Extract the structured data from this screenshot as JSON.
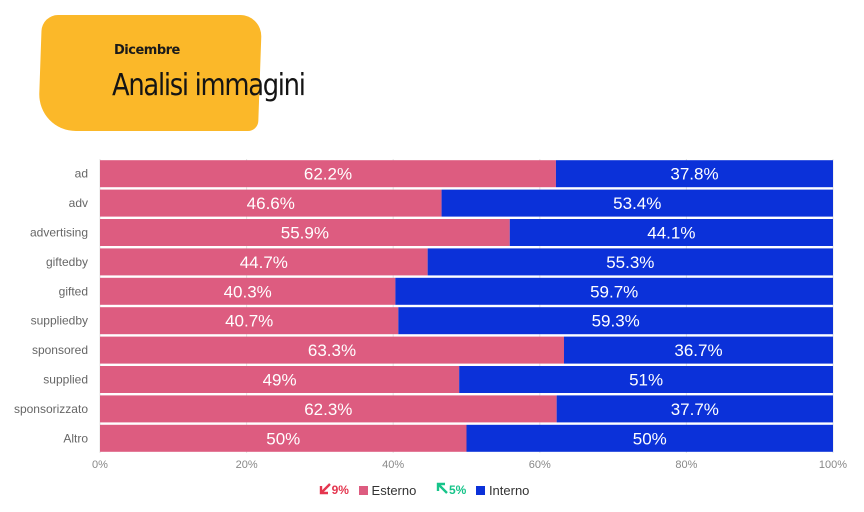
{
  "header": {
    "subtitle": "Dicembre",
    "title": "Analisi immagini"
  },
  "colors": {
    "esterno": "#dd5c80",
    "interno": "#0b31d9",
    "header_bg": "#fbb829",
    "down": "#e4364f",
    "up": "#17c48a"
  },
  "legend": {
    "esterno_change": "9%",
    "esterno_change_direction": "down",
    "esterno_label": "Esterno",
    "interno_change": "5%",
    "interno_change_direction": "up",
    "interno_label": "Interno"
  },
  "chart_data": {
    "type": "bar",
    "orientation": "horizontal",
    "stacked": true,
    "normalized": true,
    "categories": [
      "ad",
      "adv",
      "advertising",
      "giftedby",
      "gifted",
      "suppliedby",
      "sponsored",
      "supplied",
      "sponsorizzato",
      "Altro"
    ],
    "series": [
      {
        "name": "Esterno",
        "values": [
          62.2,
          46.6,
          55.9,
          44.7,
          40.3,
          40.7,
          63.3,
          49,
          62.3,
          50
        ],
        "labels": [
          "62.2%",
          "46.6%",
          "55.9%",
          "44.7%",
          "40.3%",
          "40.7%",
          "63.3%",
          "49%",
          "62.3%",
          "50%"
        ]
      },
      {
        "name": "Interno",
        "values": [
          37.8,
          53.4,
          44.1,
          55.3,
          59.7,
          59.3,
          36.7,
          51,
          37.7,
          50
        ],
        "labels": [
          "37.8%",
          "53.4%",
          "44.1%",
          "55.3%",
          "59.7%",
          "59.3%",
          "36.7%",
          "51%",
          "37.7%",
          "50%"
        ]
      }
    ],
    "xlim": [
      0,
      100
    ],
    "x_ticks": [
      "0%",
      "20%",
      "40%",
      "60%",
      "80%",
      "100%"
    ],
    "grid": true,
    "legend_position": "bottom"
  }
}
